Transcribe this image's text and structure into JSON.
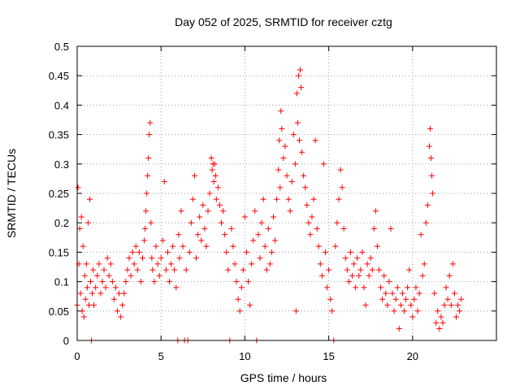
{
  "chart_data": {
    "type": "scatter",
    "title": "Day 052 of 2025, SRMTID for receiver cztg",
    "xlabel": "GPS time / hours",
    "ylabel": "SRMTID / TECUs",
    "xlim": [
      0,
      25
    ],
    "ylim": [
      0,
      0.5
    ],
    "x_ticks": [
      0,
      5,
      10,
      15,
      20
    ],
    "x_tick_labels": [
      "0",
      "5",
      "10",
      "15",
      "20"
    ],
    "y_ticks": [
      0,
      0.05,
      0.1,
      0.15,
      0.2,
      0.25,
      0.3,
      0.35,
      0.4,
      0.45,
      0.5
    ],
    "y_tick_labels": [
      "0",
      "0.05",
      "0.1",
      "0.15",
      "0.2",
      "0.25",
      "0.3",
      "0.35",
      "0.4",
      "0.45",
      "0.5"
    ],
    "grid": true,
    "marker": "plus",
    "series_color": "#ff0000",
    "series": [
      {
        "points": [
          [
            0.0,
            0.06
          ],
          [
            0.05,
            0.26
          ],
          [
            0.1,
            0.13
          ],
          [
            0.15,
            0.19
          ],
          [
            0.2,
            0.08
          ],
          [
            0.25,
            0.21
          ],
          [
            0.3,
            0.05
          ],
          [
            0.35,
            0.16
          ],
          [
            0.4,
            0.04
          ],
          [
            0.45,
            0.11
          ],
          [
            0.5,
            0.07
          ],
          [
            0.55,
            0.13
          ],
          [
            0.6,
            0.09
          ],
          [
            0.65,
            0.2
          ],
          [
            0.7,
            0.06
          ],
          [
            0.75,
            0.24
          ],
          [
            0.8,
            0.1
          ],
          [
            0.85,
            0.0
          ],
          [
            0.9,
            0.08
          ],
          [
            0.95,
            0.12
          ],
          [
            1.0,
            0.06
          ],
          [
            1.1,
            0.09
          ],
          [
            1.2,
            0.11
          ],
          [
            1.3,
            0.13
          ],
          [
            1.4,
            0.08
          ],
          [
            1.5,
            0.1
          ],
          [
            1.6,
            0.12
          ],
          [
            1.7,
            0.09
          ],
          [
            1.8,
            0.14
          ],
          [
            1.9,
            0.11
          ],
          [
            2.0,
            0.13
          ],
          [
            2.1,
            0.1
          ],
          [
            2.2,
            0.07
          ],
          [
            2.3,
            0.09
          ],
          [
            2.4,
            0.05
          ],
          [
            2.5,
            0.08
          ],
          [
            2.6,
            0.04
          ],
          [
            2.7,
            0.06
          ],
          [
            2.8,
            0.08
          ],
          [
            2.9,
            0.1
          ],
          [
            3.0,
            0.12
          ],
          [
            3.1,
            0.14
          ],
          [
            3.2,
            0.11
          ],
          [
            3.3,
            0.15
          ],
          [
            3.4,
            0.13
          ],
          [
            3.5,
            0.16
          ],
          [
            3.6,
            0.12
          ],
          [
            3.7,
            0.15
          ],
          [
            3.8,
            0.1
          ],
          [
            3.9,
            0.14
          ],
          [
            4.0,
            0.17
          ],
          [
            4.05,
            0.19
          ],
          [
            4.1,
            0.22
          ],
          [
            4.15,
            0.25
          ],
          [
            4.2,
            0.28
          ],
          [
            4.25,
            0.31
          ],
          [
            4.3,
            0.35
          ],
          [
            4.35,
            0.37
          ],
          [
            4.4,
            0.2
          ],
          [
            4.45,
            0.14
          ],
          [
            4.5,
            0.12
          ],
          [
            4.6,
            0.1
          ],
          [
            4.7,
            0.16
          ],
          [
            4.8,
            0.13
          ],
          [
            4.9,
            0.11
          ],
          [
            5.0,
            0.14
          ],
          [
            5.1,
            0.17
          ],
          [
            5.2,
            0.27
          ],
          [
            5.3,
            0.12
          ],
          [
            5.4,
            0.15
          ],
          [
            5.5,
            0.1
          ],
          [
            5.6,
            0.13
          ],
          [
            5.7,
            0.16
          ],
          [
            5.8,
            0.12
          ],
          [
            5.9,
            0.09
          ],
          [
            6.0,
            0.0
          ],
          [
            6.05,
            0.18
          ],
          [
            6.1,
            0.14
          ],
          [
            6.2,
            0.22
          ],
          [
            6.3,
            0.16
          ],
          [
            6.4,
            0.0
          ],
          [
            6.5,
            0.12
          ],
          [
            6.6,
            0.0
          ],
          [
            6.7,
            0.15
          ],
          [
            6.8,
            0.2
          ],
          [
            6.9,
            0.24
          ],
          [
            7.0,
            0.28
          ],
          [
            7.1,
            0.14
          ],
          [
            7.2,
            0.18
          ],
          [
            7.3,
            0.21
          ],
          [
            7.4,
            0.17
          ],
          [
            7.5,
            0.23
          ],
          [
            7.6,
            0.19
          ],
          [
            7.7,
            0.16
          ],
          [
            7.8,
            0.22
          ],
          [
            7.9,
            0.25
          ],
          [
            8.0,
            0.31
          ],
          [
            8.05,
            0.29
          ],
          [
            8.1,
            0.3
          ],
          [
            8.15,
            0.27
          ],
          [
            8.2,
            0.3
          ],
          [
            8.25,
            0.28
          ],
          [
            8.3,
            0.24
          ],
          [
            8.4,
            0.26
          ],
          [
            8.5,
            0.23
          ],
          [
            8.6,
            0.2
          ],
          [
            8.7,
            0.22
          ],
          [
            8.8,
            0.18
          ],
          [
            8.9,
            0.15
          ],
          [
            9.0,
            0.12
          ],
          [
            9.1,
            0.0
          ],
          [
            9.2,
            0.19
          ],
          [
            9.3,
            0.16
          ],
          [
            9.4,
            0.13
          ],
          [
            9.5,
            0.1
          ],
          [
            9.6,
            0.07
          ],
          [
            9.7,
            0.05
          ],
          [
            9.8,
            0.09
          ],
          [
            9.9,
            0.12
          ],
          [
            10.0,
            0.21
          ],
          [
            10.1,
            0.15
          ],
          [
            10.2,
            0.1
          ],
          [
            10.3,
            0.06
          ],
          [
            10.4,
            0.13
          ],
          [
            10.5,
            0.17
          ],
          [
            10.6,
            0.22
          ],
          [
            10.7,
            0.0
          ],
          [
            10.8,
            0.18
          ],
          [
            10.9,
            0.14
          ],
          [
            11.0,
            0.2
          ],
          [
            11.1,
            0.24
          ],
          [
            11.2,
            0.16
          ],
          [
            11.3,
            0.12
          ],
          [
            11.4,
            0.19
          ],
          [
            11.5,
            0.13
          ],
          [
            11.6,
            0.15
          ],
          [
            11.7,
            0.21
          ],
          [
            11.8,
            0.17
          ],
          [
            11.9,
            0.24
          ],
          [
            12.0,
            0.29
          ],
          [
            12.05,
            0.34
          ],
          [
            12.1,
            0.26
          ],
          [
            12.15,
            0.39
          ],
          [
            12.2,
            0.36
          ],
          [
            12.3,
            0.31
          ],
          [
            12.4,
            0.33
          ],
          [
            12.5,
            0.28
          ],
          [
            12.6,
            0.24
          ],
          [
            12.7,
            0.22
          ],
          [
            12.8,
            0.27
          ],
          [
            12.9,
            0.35
          ],
          [
            13.0,
            0.3
          ],
          [
            13.05,
            0.05
          ],
          [
            13.1,
            0.42
          ],
          [
            13.15,
            0.37
          ],
          [
            13.2,
            0.45
          ],
          [
            13.25,
            0.34
          ],
          [
            13.3,
            0.46
          ],
          [
            13.35,
            0.43
          ],
          [
            13.4,
            0.32
          ],
          [
            13.5,
            0.28
          ],
          [
            13.6,
            0.26
          ],
          [
            13.7,
            0.23
          ],
          [
            13.8,
            0.2
          ],
          [
            13.9,
            0.18
          ],
          [
            14.0,
            0.21
          ],
          [
            14.1,
            0.24
          ],
          [
            14.2,
            0.34
          ],
          [
            14.3,
            0.19
          ],
          [
            14.4,
            0.16
          ],
          [
            14.5,
            0.13
          ],
          [
            14.6,
            0.11
          ],
          [
            14.7,
            0.3
          ],
          [
            14.8,
            0.15
          ],
          [
            14.9,
            0.09
          ],
          [
            15.0,
            0.12
          ],
          [
            15.1,
            0.07
          ],
          [
            15.2,
            0.05
          ],
          [
            15.3,
            0.0
          ],
          [
            15.4,
            0.16
          ],
          [
            15.5,
            0.2
          ],
          [
            15.6,
            0.24
          ],
          [
            15.7,
            0.29
          ],
          [
            15.8,
            0.26
          ],
          [
            15.9,
            0.19
          ],
          [
            16.0,
            0.14
          ],
          [
            16.1,
            0.12
          ],
          [
            16.2,
            0.1
          ],
          [
            16.3,
            0.15
          ],
          [
            16.4,
            0.11
          ],
          [
            16.5,
            0.13
          ],
          [
            16.6,
            0.09
          ],
          [
            16.7,
            0.14
          ],
          [
            16.8,
            0.11
          ],
          [
            16.9,
            0.12
          ],
          [
            17.0,
            0.15
          ],
          [
            17.1,
            0.09
          ],
          [
            17.2,
            0.06
          ],
          [
            17.3,
            0.13
          ],
          [
            17.4,
            0.11
          ],
          [
            17.5,
            0.14
          ],
          [
            17.6,
            0.12
          ],
          [
            17.7,
            0.19
          ],
          [
            17.8,
            0.22
          ],
          [
            17.9,
            0.16
          ],
          [
            18.0,
            0.12
          ],
          [
            18.1,
            0.09
          ],
          [
            18.2,
            0.07
          ],
          [
            18.3,
            0.11
          ],
          [
            18.4,
            0.08
          ],
          [
            18.5,
            0.06
          ],
          [
            18.6,
            0.1
          ],
          [
            18.7,
            0.19
          ],
          [
            18.8,
            0.08
          ],
          [
            18.9,
            0.05
          ],
          [
            19.0,
            0.07
          ],
          [
            19.1,
            0.09
          ],
          [
            19.2,
            0.02
          ],
          [
            19.3,
            0.06
          ],
          [
            19.4,
            0.08
          ],
          [
            19.5,
            0.05
          ],
          [
            19.6,
            0.07
          ],
          [
            19.7,
            0.09
          ],
          [
            19.8,
            0.12
          ],
          [
            19.9,
            0.06
          ],
          [
            20.0,
            0.04
          ],
          [
            20.1,
            0.07
          ],
          [
            20.2,
            0.09
          ],
          [
            20.3,
            0.05
          ],
          [
            20.4,
            0.08
          ],
          [
            20.5,
            0.18
          ],
          [
            20.6,
            0.11
          ],
          [
            20.7,
            0.13
          ],
          [
            20.8,
            0.2
          ],
          [
            20.9,
            0.23
          ],
          [
            21.0,
            0.33
          ],
          [
            21.05,
            0.36
          ],
          [
            21.1,
            0.31
          ],
          [
            21.15,
            0.28
          ],
          [
            21.2,
            0.25
          ],
          [
            21.3,
            0.08
          ],
          [
            21.4,
            0.03
          ],
          [
            21.5,
            0.05
          ],
          [
            21.6,
            0.02
          ],
          [
            21.7,
            0.04
          ],
          [
            21.8,
            0.03
          ],
          [
            21.9,
            0.06
          ],
          [
            22.0,
            0.09
          ],
          [
            22.1,
            0.07
          ],
          [
            22.2,
            0.11
          ],
          [
            22.3,
            0.06
          ],
          [
            22.4,
            0.13
          ],
          [
            22.5,
            0.08
          ],
          [
            22.6,
            0.04
          ],
          [
            22.7,
            0.06
          ],
          [
            22.8,
            0.05
          ],
          [
            22.9,
            0.07
          ]
        ]
      }
    ]
  }
}
